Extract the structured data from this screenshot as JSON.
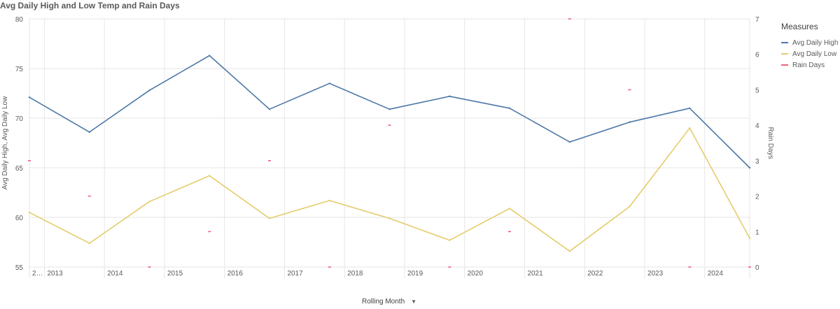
{
  "title": "Avg Daily High and Low Temp and Rain Days",
  "legend": {
    "title": "Measures",
    "items": [
      {
        "label": "Avg Daily High",
        "color": "#4e79a7"
      },
      {
        "label": "Avg Daily Low",
        "color": "#e5cc6b"
      },
      {
        "label": "Rain Days",
        "color": "#e8637a"
      }
    ]
  },
  "dimension_label": "Rolling Month",
  "dimension_menu_icon": "caret-down-icon",
  "chart_data": {
    "type": "line",
    "xlabel": "",
    "ylabel": "Avg Daily High, Avg Daily Low",
    "y2label": "Rain Days",
    "ylim": [
      55,
      80
    ],
    "yticks": [
      55,
      60,
      65,
      70,
      75,
      80
    ],
    "y2lim": [
      0,
      7
    ],
    "y2ticks": [
      0,
      1,
      2,
      3,
      4,
      5,
      6,
      7
    ],
    "x_tick_labels": [
      "2…",
      "2013",
      "2014",
      "2015",
      "2016",
      "2017",
      "2018",
      "2019",
      "2020",
      "2021",
      "2022",
      "2023",
      "2024"
    ],
    "x": [
      2012.75,
      2013.75,
      2014.75,
      2015.75,
      2016.75,
      2017.75,
      2018.75,
      2019.75,
      2020.75,
      2021.75,
      2022.75,
      2023.75,
      2024.75
    ],
    "grid": true,
    "series": [
      {
        "name": "Avg Daily High",
        "axis": "left",
        "style": "line",
        "values": [
          72.1,
          68.6,
          72.8,
          76.3,
          70.9,
          73.5,
          70.9,
          72.2,
          71.0,
          67.6,
          69.6,
          71.0,
          65.0
        ]
      },
      {
        "name": "Avg Daily Low",
        "axis": "left",
        "style": "line",
        "values": [
          60.5,
          57.4,
          61.6,
          64.2,
          59.9,
          61.7,
          59.9,
          57.7,
          60.9,
          56.6,
          61.1,
          69.0,
          57.9
        ]
      },
      {
        "name": "Rain Days",
        "axis": "right",
        "style": "marker",
        "values": [
          3,
          2,
          0,
          1,
          3,
          0,
          4,
          0,
          1,
          7,
          5,
          0,
          0
        ]
      }
    ]
  }
}
